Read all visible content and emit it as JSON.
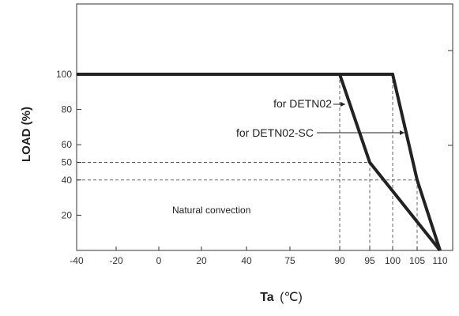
{
  "chart_data": {
    "type": "line",
    "xlabel": "Ta",
    "xlabel_unit": "(℃)",
    "ylabel": "LOAD (%)",
    "x_tick_labels": [
      "-40",
      "-20",
      "0",
      "20",
      "40",
      "75",
      "90",
      "95",
      "100",
      "105",
      "110"
    ],
    "y_tick_labels": [
      "100",
      "80",
      "60",
      "50",
      "40",
      "20"
    ],
    "y_tick_values": [
      100,
      80,
      60,
      50,
      40,
      20
    ],
    "ylim": [
      0,
      100
    ],
    "grid": false,
    "series": [
      {
        "name": "for DETN02",
        "points": [
          [
            "-40",
            100
          ],
          [
            "90",
            100
          ],
          [
            "95",
            50
          ],
          [
            "110",
            0
          ]
        ]
      },
      {
        "name": "for DETN02-SC",
        "points": [
          [
            "-40",
            100
          ],
          [
            "100",
            100
          ],
          [
            "105",
            40
          ],
          [
            "110",
            0
          ]
        ]
      }
    ],
    "reference_lines": [
      {
        "y": 50,
        "x_end": "95"
      },
      {
        "y": 40,
        "x_end": "105"
      }
    ],
    "annotations": [
      "Natural convection"
    ],
    "colors": {
      "series": "#222222",
      "dashed": "#555555",
      "axis": "#333333"
    }
  }
}
